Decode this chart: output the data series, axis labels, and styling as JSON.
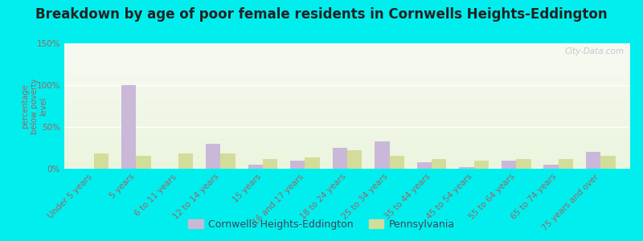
{
  "title": "Breakdown by age of poor female residents in Cornwells Heights-Eddington",
  "ylabel": "percentage\nbelow poverty\nlevel",
  "categories": [
    "Under 5 years",
    "5 years",
    "6 to 11 years",
    "12 to 14 years",
    "15 years",
    "16 and 17 years",
    "18 to 24 years",
    "25 to 34 years",
    "35 to 44 years",
    "45 to 54 years",
    "55 to 64 years",
    "65 to 74 years",
    "75 years and over"
  ],
  "cornwells_values": [
    0,
    100,
    0,
    30,
    5,
    10,
    25,
    33,
    8,
    2,
    10,
    5,
    20
  ],
  "pennsylvania_values": [
    18,
    15,
    18,
    18,
    12,
    13,
    22,
    15,
    12,
    10,
    12,
    12,
    15
  ],
  "cornwells_color": "#c9b8d8",
  "pennsylvania_color": "#d4dc9a",
  "ylim": [
    0,
    150
  ],
  "yticks": [
    0,
    50,
    100,
    150
  ],
  "ytick_labels": [
    "0%",
    "50%",
    "100%",
    "150%"
  ],
  "outer_bg_color": "#00eeee",
  "bar_width": 0.35,
  "title_fontsize": 12,
  "legend_fontsize": 9,
  "tick_fontsize": 7.5,
  "ylabel_fontsize": 7,
  "tick_color": "#996666",
  "watermark": "City-Data.com"
}
